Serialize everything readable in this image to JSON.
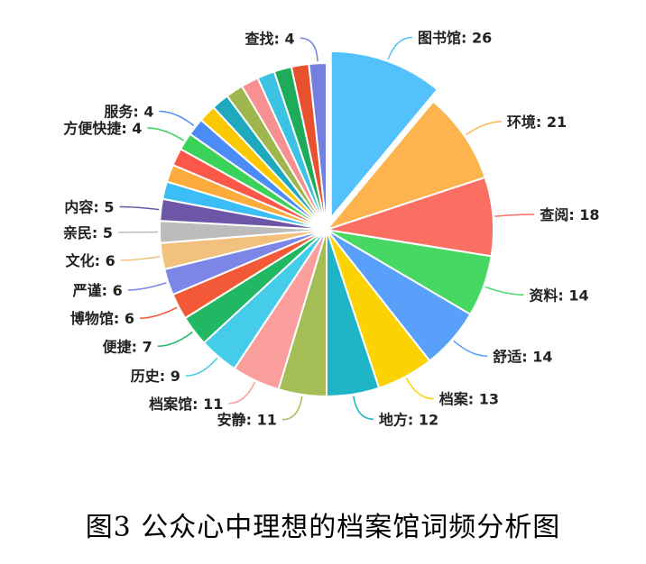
{
  "caption": "图3 公众心中理想的档案馆词频分析图",
  "chart_data": {
    "type": "pie",
    "title": "",
    "start_angle_deg": 0,
    "exploded": "图书馆",
    "slices": [
      {
        "label": "图书馆",
        "value": 26,
        "color": "#53c1fb"
      },
      {
        "label": "环境",
        "value": 21,
        "color": "#fdb44f"
      },
      {
        "label": "查阅",
        "value": 18,
        "color": "#fb6f62"
      },
      {
        "label": "资料",
        "value": 14,
        "color": "#46d863"
      },
      {
        "label": "舒适",
        "value": 14,
        "color": "#58a0fa"
      },
      {
        "label": "档案",
        "value": 13,
        "color": "#fdd202"
      },
      {
        "label": "地方",
        "value": 12,
        "color": "#20b4c7"
      },
      {
        "label": "安静",
        "value": 11,
        "color": "#a4be55"
      },
      {
        "label": "档案馆",
        "value": 11,
        "color": "#fb9e9e"
      },
      {
        "label": "历史",
        "value": 9,
        "color": "#44cce9"
      },
      {
        "label": "便捷",
        "value": 7,
        "color": "#22b863"
      },
      {
        "label": "博物馆",
        "value": 6,
        "color": "#f25a37"
      },
      {
        "label": "严谨",
        "value": 6,
        "color": "#7b86e6"
      },
      {
        "label": "文化",
        "value": 6,
        "color": "#f2c17e"
      },
      {
        "label": "亲民",
        "value": 5,
        "color": "#bcbcbc"
      },
      {
        "label": "内容",
        "value": 5,
        "color": "#6d55a8"
      },
      {
        "label": "",
        "value": 4,
        "color": "#3cbdf5"
      },
      {
        "label": "",
        "value": 4,
        "color": "#fbac3c"
      },
      {
        "label": "",
        "value": 4,
        "color": "#fb584a"
      },
      {
        "label": "方便快捷",
        "value": 4,
        "color": "#3bd25a"
      },
      {
        "label": "服务",
        "value": 4,
        "color": "#4c8cf6"
      },
      {
        "label": "",
        "value": 4,
        "color": "#fcc800"
      },
      {
        "label": "",
        "value": 4,
        "color": "#1fa9bd"
      },
      {
        "label": "",
        "value": 4,
        "color": "#9fb64c"
      },
      {
        "label": "",
        "value": 4,
        "color": "#f79191"
      },
      {
        "label": "",
        "value": 4,
        "color": "#3cc2e2"
      },
      {
        "label": "",
        "value": 4,
        "color": "#1eac5a"
      },
      {
        "label": "",
        "value": 4,
        "color": "#e8502e"
      },
      {
        "label": "查找",
        "value": 4,
        "color": "#7480dd"
      }
    ]
  }
}
